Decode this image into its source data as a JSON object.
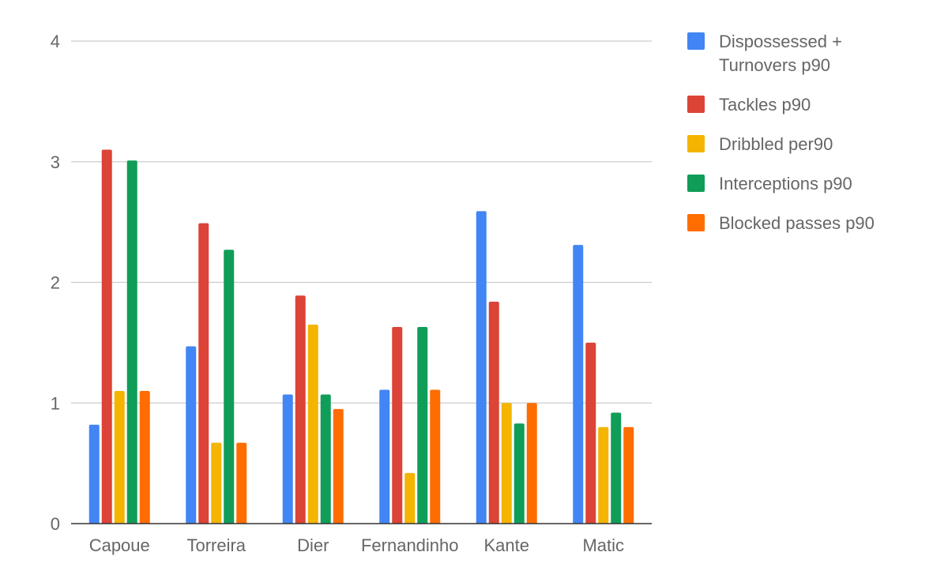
{
  "chart_data": {
    "type": "bar",
    "title": "",
    "xlabel": "",
    "ylabel": "",
    "categories": [
      "Capoue",
      "Torreira",
      "Dier",
      "Fernandinho",
      "Kante",
      "Matic"
    ],
    "ylim": [
      0,
      4
    ],
    "yticks": [
      "0",
      "1",
      "2",
      "3",
      "4"
    ],
    "grid": true,
    "legend_position": "right",
    "series": [
      {
        "name": "Dispossessed + Turnovers p90",
        "legend_lines": [
          "Dispossessed +",
          "Turnovers p90"
        ],
        "color": "#4285f4",
        "values": [
          0.82,
          1.47,
          1.07,
          1.11,
          2.59,
          2.31
        ]
      },
      {
        "name": "Tackles p90",
        "legend_lines": [
          "Tackles p90"
        ],
        "color": "#db4437",
        "values": [
          3.1,
          2.49,
          1.89,
          1.63,
          1.84,
          1.5
        ]
      },
      {
        "name": "Dribbled per90",
        "legend_lines": [
          "Dribbled per90"
        ],
        "color": "#f4b400",
        "values": [
          1.1,
          0.67,
          1.65,
          0.42,
          1.0,
          0.8
        ]
      },
      {
        "name": "Interceptions p90",
        "legend_lines": [
          "Interceptions p90"
        ],
        "color": "#0f9d58",
        "values": [
          3.01,
          2.27,
          1.07,
          1.63,
          0.83,
          0.92
        ]
      },
      {
        "name": "Blocked passes p90",
        "legend_lines": [
          "Blocked passes p90"
        ],
        "color": "#ff6d00",
        "values": [
          1.1,
          0.67,
          0.95,
          1.11,
          1.0,
          0.8
        ]
      }
    ]
  }
}
